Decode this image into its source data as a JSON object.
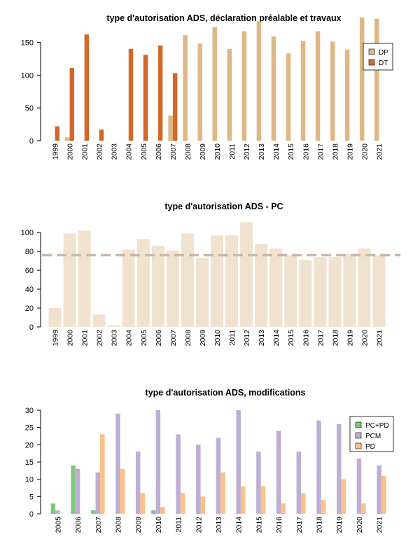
{
  "chart_data": [
    {
      "type": "bar",
      "title": "type d'autorisation ADS, déclaration préalable et travaux",
      "xlabel": "",
      "ylabel": "",
      "categories": [
        "1999",
        "2000",
        "2001",
        "2002",
        "2003",
        "2004",
        "2005",
        "2006",
        "2007",
        "2008",
        "2009",
        "2010",
        "2011",
        "2012",
        "2013",
        "2014",
        "2015",
        "2016",
        "2017",
        "2018",
        "2019",
        "2020",
        "2021"
      ],
      "yticks": [
        0,
        50,
        100,
        150
      ],
      "ylim": [
        0,
        190
      ],
      "legend_position": "top-right",
      "series": [
        {
          "name": "DP",
          "color": "#dfb787",
          "values": [
            0,
            5,
            0,
            0,
            0,
            0,
            0,
            0,
            38,
            161,
            148,
            173,
            140,
            167,
            182,
            159,
            133,
            152,
            167,
            151,
            139,
            188,
            186
          ]
        },
        {
          "name": "DT",
          "color": "#d2692a",
          "values": [
            22,
            111,
            162,
            17,
            0,
            140,
            131,
            145,
            103,
            0,
            0,
            0,
            0,
            0,
            0,
            0,
            0,
            0,
            0,
            0,
            0,
            0,
            0
          ]
        }
      ]
    },
    {
      "type": "bar",
      "title": "type d'autorisation ADS - PC",
      "xlabel": "",
      "ylabel": "",
      "categories": [
        "1999",
        "2000",
        "2001",
        "2002",
        "2003",
        "2004",
        "2005",
        "2006",
        "2007",
        "2008",
        "2009",
        "2010",
        "2011",
        "2012",
        "2013",
        "2014",
        "2015",
        "2016",
        "2017",
        "2018",
        "2019",
        "2020",
        "2021"
      ],
      "yticks": [
        0,
        20,
        40,
        60,
        80,
        100
      ],
      "ylim": [
        0,
        112
      ],
      "reference_line": 76,
      "reference_color": "#c9b9a6",
      "series": [
        {
          "name": "",
          "color": "#f0e2cf",
          "values": [
            20,
            99,
            102,
            13,
            2,
            82,
            93,
            86,
            81,
            99,
            73,
            97,
            97,
            111,
            88,
            83,
            76,
            71,
            74,
            74,
            77,
            83,
            76
          ]
        }
      ]
    },
    {
      "type": "bar",
      "title": "type d'autorisation ADS, modifications",
      "xlabel": "",
      "ylabel": "",
      "categories": [
        "2005",
        "2006",
        "2007",
        "2008",
        "2009",
        "2010",
        "2011",
        "2012",
        "2013",
        "2014",
        "2015",
        "2016",
        "2017",
        "2018",
        "2019",
        "2020",
        "2021"
      ],
      "yticks": [
        0,
        5,
        10,
        15,
        20,
        25,
        30
      ],
      "ylim": [
        0,
        30
      ],
      "legend_position": "top-right",
      "series": [
        {
          "name": "PC+PD",
          "color": "#7fc97f",
          "values": [
            3,
            14,
            1,
            0,
            0,
            1,
            0,
            0,
            0,
            0,
            0,
            0,
            0,
            0,
            0,
            0,
            0
          ]
        },
        {
          "name": "PCM",
          "color": "#beaed4",
          "values": [
            1,
            13,
            12,
            29,
            18,
            30,
            23,
            20,
            22,
            30,
            18,
            24,
            18,
            27,
            26,
            16,
            14
          ]
        },
        {
          "name": "PD",
          "color": "#fdc086",
          "values": [
            0,
            0,
            23,
            13,
            6,
            2,
            6,
            5,
            12,
            8,
            8,
            3,
            6,
            4,
            10,
            3,
            11
          ]
        }
      ]
    }
  ]
}
